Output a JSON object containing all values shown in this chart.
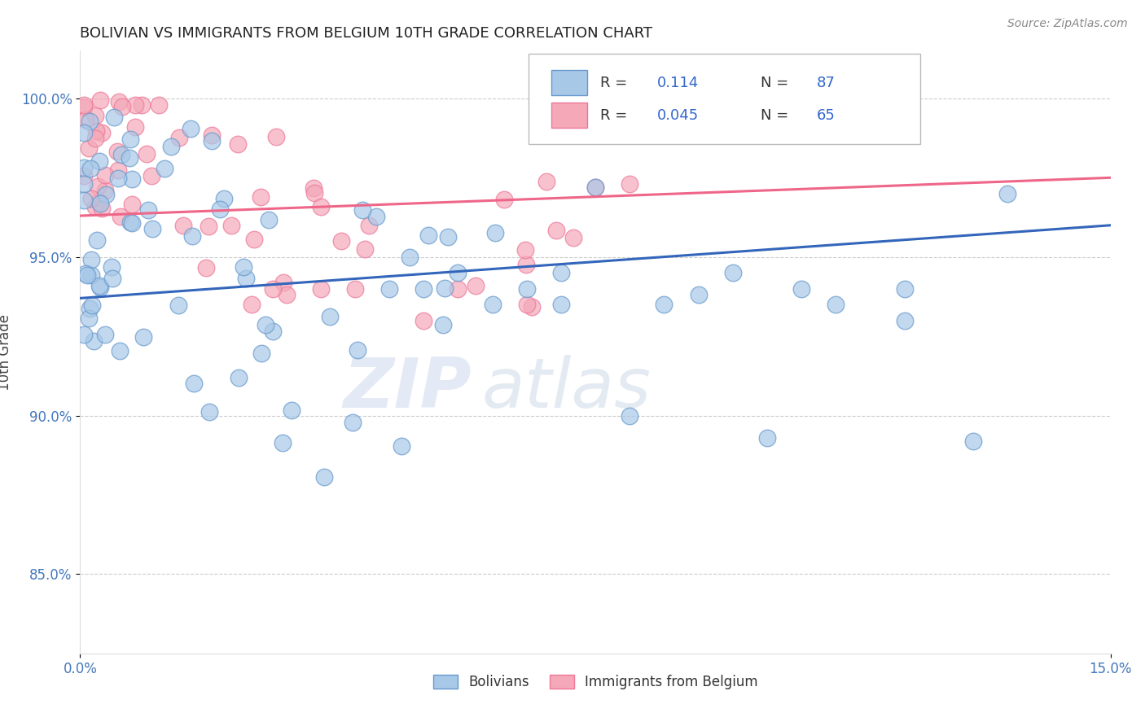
{
  "title": "BOLIVIAN VS IMMIGRANTS FROM BELGIUM 10TH GRADE CORRELATION CHART",
  "source_text": "Source: ZipAtlas.com",
  "xlabel": "",
  "ylabel": "10th Grade",
  "xlim": [
    0.0,
    0.15
  ],
  "ylim": [
    0.825,
    1.015
  ],
  "xticks": [
    0.0,
    0.15
  ],
  "xticklabels": [
    "0.0%",
    "15.0%"
  ],
  "yticks": [
    0.85,
    0.9,
    0.95,
    1.0
  ],
  "yticklabels": [
    "85.0%",
    "90.0%",
    "95.0%",
    "100.0%"
  ],
  "R_bolivian": 0.114,
  "N_bolivian": 87,
  "R_belgium": 0.045,
  "N_belgium": 65,
  "color_bolivian": "#a8c8e8",
  "color_belgium": "#f4a8b8",
  "edge_bolivian": "#6699cc",
  "edge_belgium": "#ee7799",
  "trendline_bolivian": "#3366bb",
  "trendline_belgium": "#ee6688",
  "legend_label_bolivian": "Bolivians",
  "legend_label_belgium": "Immigrants from Belgium",
  "background_color": "#ffffff",
  "grid_color": "#cccccc",
  "watermark_zip": "ZIP",
  "watermark_atlas": "atlas",
  "blue_trendline_x": [
    0.0,
    0.15
  ],
  "blue_trendline_y": [
    0.937,
    0.96
  ],
  "pink_trendline_x": [
    0.0,
    0.15
  ],
  "pink_trendline_y": [
    0.963,
    0.975
  ]
}
